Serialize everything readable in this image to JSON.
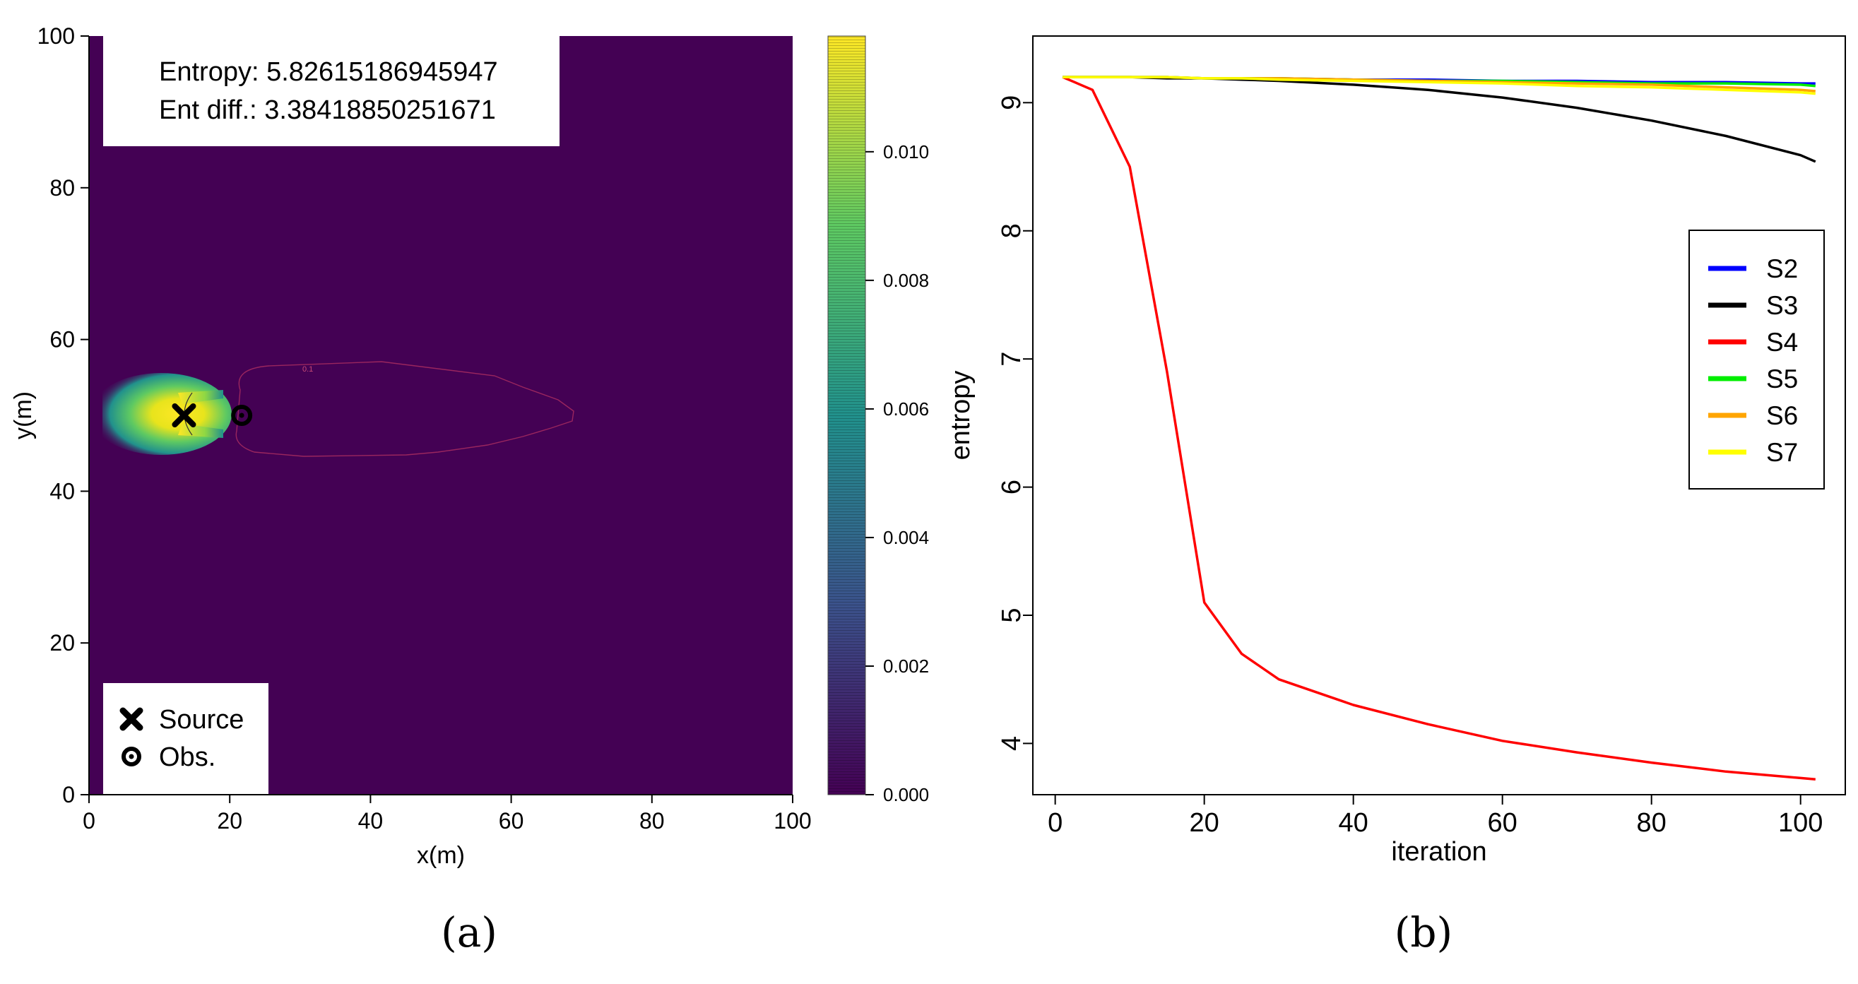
{
  "colors": {
    "viridis_dark": "#440154",
    "viridis_mid": "#21918c",
    "viridis_light": "#5ec962",
    "viridis_yellow": "#fde725",
    "contour": "#b03060"
  },
  "chart_data": [
    {
      "type": "heatmap",
      "panel_label": "(a)",
      "xlabel": "x(m)",
      "ylabel": "y(m)",
      "xlim": [
        0,
        100
      ],
      "ylim": [
        0,
        100
      ],
      "xticks": [
        "0",
        "20",
        "40",
        "60",
        "80",
        "100"
      ],
      "yticks": [
        "0",
        "20",
        "40",
        "60",
        "80",
        "100"
      ],
      "annotation_lines": [
        "Entropy: 5.82615186945947",
        "Ent diff.: 3.38418850251671"
      ],
      "contour_label": "0.1",
      "source": {
        "x": 13.5,
        "y": 50
      },
      "observation": {
        "x": 21.7,
        "y": 50
      },
      "legend": [
        {
          "marker": "x-icon",
          "label": "Source"
        },
        {
          "marker": "circle-dot-icon",
          "label": "Obs."
        }
      ],
      "colorbar": {
        "min": 0.0,
        "max": 0.0118,
        "ticks": [
          "0.000",
          "0.002",
          "0.004",
          "0.006",
          "0.008",
          "0.010"
        ],
        "tick_values": [
          0.0,
          0.002,
          0.004,
          0.006,
          0.008,
          0.01
        ]
      }
    },
    {
      "type": "line",
      "panel_label": "(b)",
      "xlabel": "iteration",
      "ylabel": "entropy",
      "xlim": [
        -3,
        106
      ],
      "ylim": [
        3.6,
        9.52
      ],
      "xticks": [
        "0",
        "20",
        "40",
        "60",
        "80",
        "100"
      ],
      "yticks": [
        "4",
        "5",
        "6",
        "7",
        "8",
        "9"
      ],
      "x": [
        1,
        5,
        10,
        15,
        20,
        25,
        30,
        40,
        50,
        60,
        70,
        80,
        90,
        100,
        102
      ],
      "series": [
        {
          "name": "S2",
          "color": "#0000ff",
          "values": [
            9.2,
            9.2,
            9.2,
            9.2,
            9.19,
            9.19,
            9.19,
            9.18,
            9.18,
            9.17,
            9.17,
            9.16,
            9.16,
            9.15,
            9.15
          ]
        },
        {
          "name": "S3",
          "color": "#000000",
          "values": [
            9.2,
            9.2,
            9.2,
            9.19,
            9.19,
            9.18,
            9.17,
            9.14,
            9.1,
            9.04,
            8.96,
            8.86,
            8.74,
            8.59,
            8.54
          ]
        },
        {
          "name": "S4",
          "color": "#ff0000",
          "values": [
            9.2,
            9.1,
            8.5,
            6.9,
            5.1,
            4.7,
            4.5,
            4.3,
            4.15,
            4.02,
            3.93,
            3.85,
            3.78,
            3.73,
            3.72
          ]
        },
        {
          "name": "S5",
          "color": "#00ee00",
          "values": [
            9.2,
            9.2,
            9.2,
            9.2,
            9.19,
            9.19,
            9.19,
            9.18,
            9.17,
            9.17,
            9.16,
            9.15,
            9.15,
            9.14,
            9.13
          ]
        },
        {
          "name": "S6",
          "color": "#ffa500",
          "values": [
            9.2,
            9.2,
            9.2,
            9.2,
            9.19,
            9.19,
            9.19,
            9.18,
            9.17,
            9.16,
            9.15,
            9.14,
            9.12,
            9.1,
            9.09
          ]
        },
        {
          "name": "S7",
          "color": "#ffff00",
          "values": [
            9.2,
            9.2,
            9.2,
            9.2,
            9.19,
            9.19,
            9.18,
            9.17,
            9.16,
            9.15,
            9.13,
            9.12,
            9.1,
            9.08,
            9.07
          ]
        }
      ]
    }
  ]
}
